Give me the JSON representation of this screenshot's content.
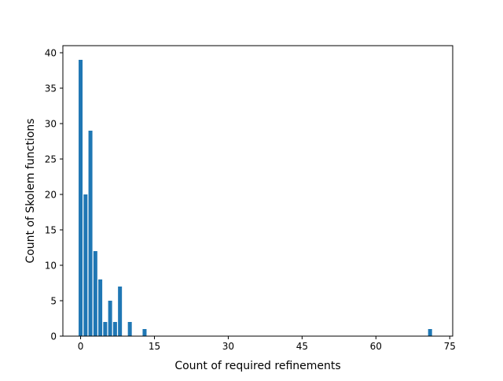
{
  "chart_data": {
    "type": "bar",
    "xlabel": "Count of required refinements",
    "ylabel": "Count of Skolem functions",
    "xlim": [
      -3.6,
      75.6
    ],
    "ylim": [
      0,
      41
    ],
    "xticks": [
      0,
      15,
      30,
      45,
      60,
      75
    ],
    "yticks": [
      0,
      5,
      10,
      15,
      20,
      25,
      30,
      35,
      40
    ],
    "grid": false,
    "bar_color": "#1f77b4",
    "bar_width": 0.8,
    "x": [
      0,
      1,
      2,
      3,
      4,
      5,
      6,
      7,
      8,
      10,
      13,
      71
    ],
    "values": [
      39,
      20,
      29,
      12,
      8,
      2,
      5,
      2,
      7,
      2,
      1,
      1
    ]
  }
}
